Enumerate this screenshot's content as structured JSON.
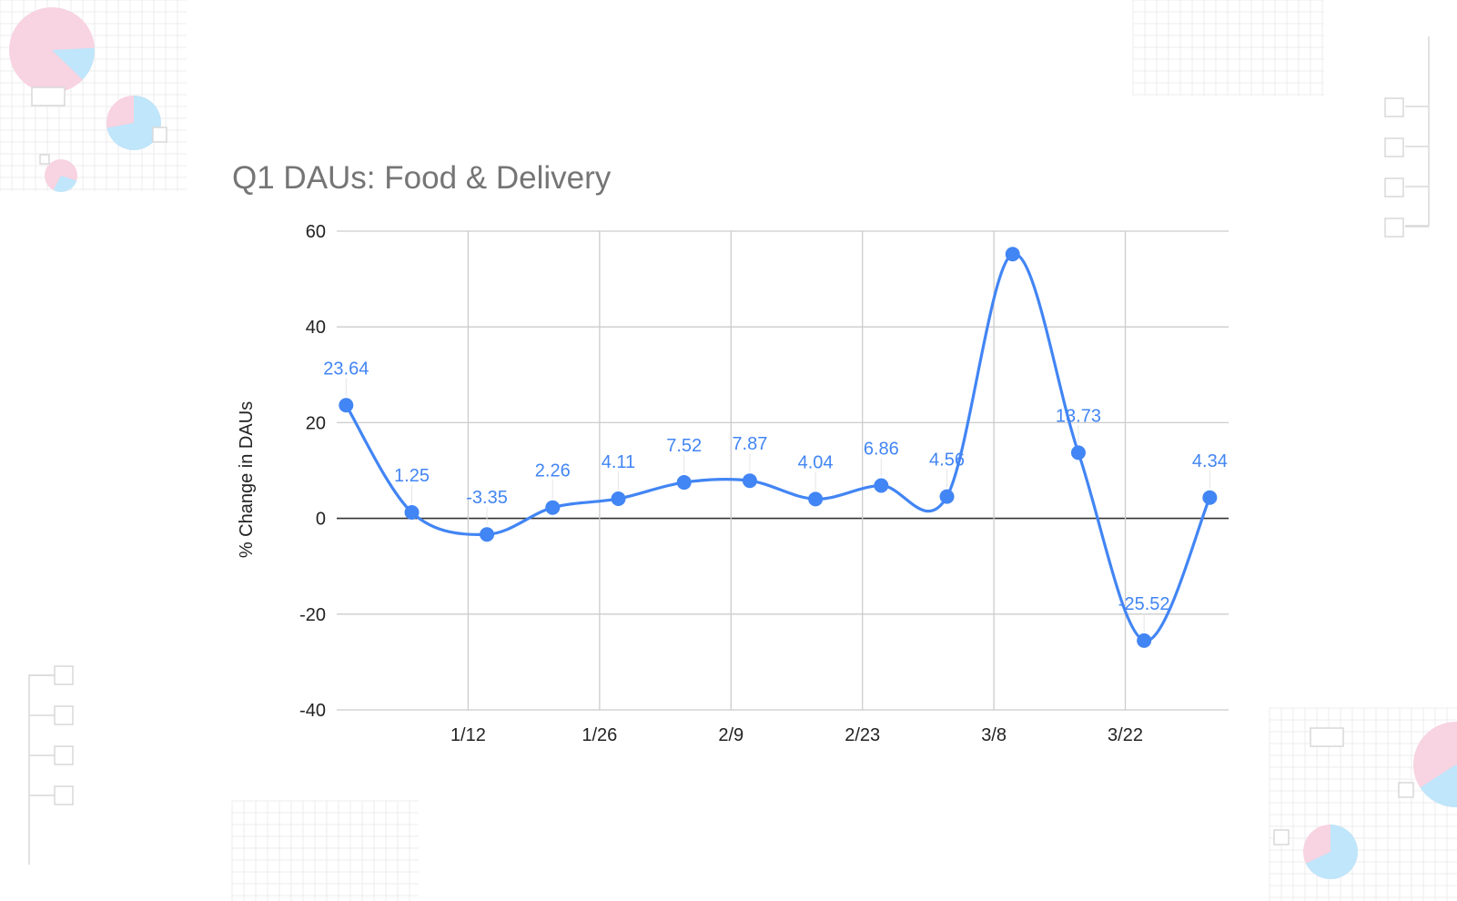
{
  "colors": {
    "series": "#4285F4",
    "grid": "#cccccc",
    "zero_line": "#333333",
    "title": "#757575",
    "deco_pink": "#F8D3E1",
    "deco_blue": "#BFE6FB",
    "deco_grid": "#ececec"
  },
  "chart_data": {
    "type": "line",
    "title": "Q1 DAUs: Food & Delivery",
    "xlabel": "",
    "ylabel": "% Change in DAUs",
    "ylim": [
      -40,
      60
    ],
    "yticks": [
      -40,
      -20,
      0,
      20,
      40,
      60
    ],
    "xlim": [
      "2023-12-29",
      "2024-04-02"
    ],
    "xticks": [
      {
        "date": "2024-01-12",
        "label": "1/12"
      },
      {
        "date": "2024-01-26",
        "label": "1/26"
      },
      {
        "date": "2024-02-09",
        "label": "2/9"
      },
      {
        "date": "2024-02-23",
        "label": "2/23"
      },
      {
        "date": "2024-03-08",
        "label": "3/8"
      },
      {
        "date": "2024-03-22",
        "label": "3/22"
      }
    ],
    "grid": true,
    "curve": "smooth",
    "series": [
      {
        "points": [
          {
            "x": "2023-12-30",
            "y": 23.64,
            "label": "23.64"
          },
          {
            "x": "2024-01-06",
            "y": 1.25,
            "label": "1.25"
          },
          {
            "x": "2024-01-14",
            "y": -3.35,
            "label": "-3.35"
          },
          {
            "x": "2024-01-21",
            "y": 2.26,
            "label": "2.26"
          },
          {
            "x": "2024-01-28",
            "y": 4.11,
            "label": "4.11"
          },
          {
            "x": "2024-02-04",
            "y": 7.52,
            "label": "7.52"
          },
          {
            "x": "2024-02-11",
            "y": 7.87,
            "label": "7.87"
          },
          {
            "x": "2024-02-18",
            "y": 4.04,
            "label": "4.04"
          },
          {
            "x": "2024-02-25",
            "y": 6.86,
            "label": "6.86"
          },
          {
            "x": "2024-03-03",
            "y": 4.56,
            "label": "4.56"
          },
          {
            "x": "2024-03-10",
            "y": 55.2,
            "label": ""
          },
          {
            "x": "2024-03-17",
            "y": 13.73,
            "label": "13.73"
          },
          {
            "x": "2024-03-24",
            "y": -25.52,
            "label": "-25.52"
          },
          {
            "x": "2024-03-31",
            "y": 4.34,
            "label": "4.34"
          }
        ]
      }
    ]
  }
}
